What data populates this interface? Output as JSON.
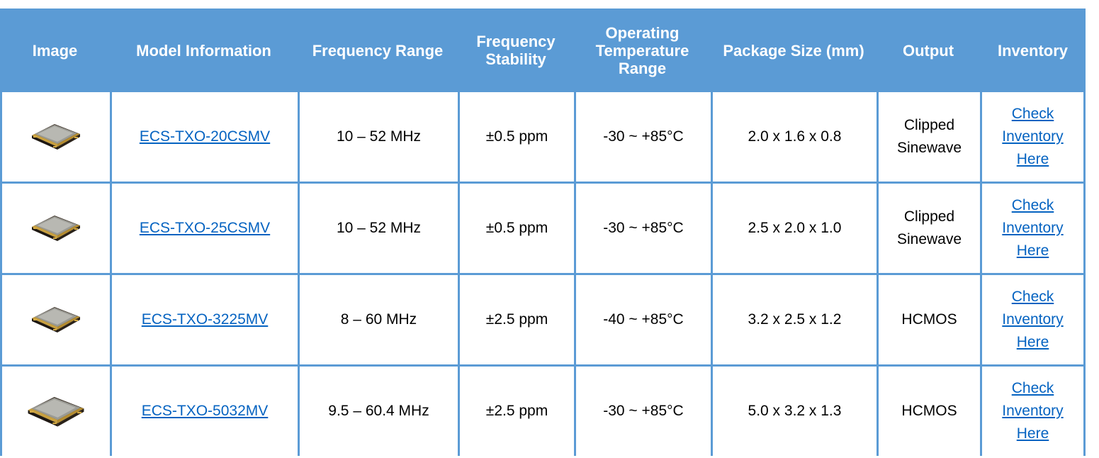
{
  "table": {
    "headers": [
      "Image",
      "Model Information",
      "Frequency Range",
      "Frequency Stability",
      "Operating Temperature Range",
      "Package Size (mm)",
      "Output",
      "Inventory"
    ],
    "rows": [
      {
        "image_icon": "crystal-oscillator-chip-small",
        "model": "ECS-TXO-20CSMV",
        "frequency_range": "10 – 52 MHz",
        "frequency_stability": "±0.5 ppm",
        "temperature_range": "-30 ~ +85°C",
        "package_size": "2.0 x 1.6 x 0.8",
        "output": "Clipped Sinewave",
        "inventory": "Check Inventory Here"
      },
      {
        "image_icon": "crystal-oscillator-chip-small",
        "model": "ECS-TXO-25CSMV",
        "frequency_range": "10 – 52 MHz",
        "frequency_stability": "±0.5 ppm",
        "temperature_range": "-30 ~ +85°C",
        "package_size": "2.5 x 2.0 x 1.0",
        "output": "Clipped Sinewave",
        "inventory": "Check Inventory Here"
      },
      {
        "image_icon": "crystal-oscillator-chip-small",
        "model": "ECS-TXO-3225MV",
        "frequency_range": "8 – 60 MHz",
        "frequency_stability": "±2.5 ppm",
        "temperature_range": "-40 ~ +85°C",
        "package_size": "3.2 x 2.5 x 1.2",
        "output": "HCMOS",
        "inventory": "Check Inventory Here"
      },
      {
        "image_icon": "crystal-oscillator-chip-large",
        "model": "ECS-TXO-5032MV",
        "frequency_range": "9.5 – 60.4 MHz",
        "frequency_stability": "±2.5 ppm",
        "temperature_range": "-30 ~ +85°C",
        "package_size": "5.0 x 3.2 x 1.3",
        "output": "HCMOS",
        "inventory": "Check Inventory Here"
      }
    ]
  },
  "colors": {
    "header_bg": "#5b9bd5",
    "header_text": "#ffffff",
    "link": "#0563c1"
  }
}
